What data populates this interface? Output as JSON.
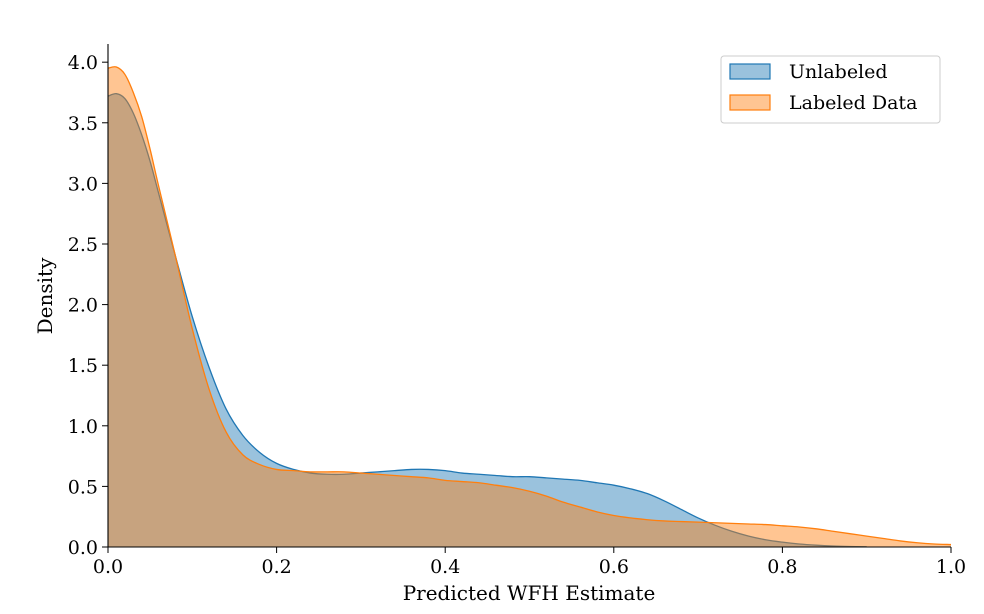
{
  "chart_data": {
    "type": "area",
    "xlabel": "Predicted WFH Estimate",
    "ylabel": "Density",
    "xlim": [
      0.0,
      1.0
    ],
    "ylim": [
      0.0,
      4.15
    ],
    "x_ticks": [
      "0.0",
      "0.2",
      "0.4",
      "0.6",
      "0.8",
      "1.0"
    ],
    "y_ticks": [
      "0.0",
      "0.5",
      "1.0",
      "1.5",
      "2.0",
      "2.5",
      "3.0",
      "3.5",
      "4.0"
    ],
    "legend_position": "top-right",
    "grid": false,
    "series": [
      {
        "name": "Unlabeled",
        "color": "#1f77b4",
        "x": [
          0.0,
          0.01,
          0.02,
          0.03,
          0.04,
          0.05,
          0.06,
          0.08,
          0.1,
          0.12,
          0.14,
          0.16,
          0.18,
          0.2,
          0.22,
          0.24,
          0.26,
          0.28,
          0.3,
          0.32,
          0.34,
          0.36,
          0.38,
          0.4,
          0.42,
          0.44,
          0.46,
          0.48,
          0.5,
          0.52,
          0.54,
          0.56,
          0.58,
          0.6,
          0.62,
          0.64,
          0.66,
          0.68,
          0.7,
          0.72,
          0.74,
          0.76,
          0.78,
          0.8,
          0.82,
          0.84,
          0.86,
          0.88,
          0.9
        ],
        "values": [
          3.72,
          3.74,
          3.7,
          3.58,
          3.4,
          3.18,
          2.92,
          2.4,
          1.9,
          1.48,
          1.14,
          0.92,
          0.78,
          0.69,
          0.64,
          0.61,
          0.6,
          0.6,
          0.61,
          0.62,
          0.63,
          0.64,
          0.64,
          0.63,
          0.61,
          0.6,
          0.59,
          0.58,
          0.58,
          0.57,
          0.56,
          0.55,
          0.53,
          0.51,
          0.48,
          0.44,
          0.38,
          0.31,
          0.24,
          0.18,
          0.13,
          0.09,
          0.06,
          0.04,
          0.025,
          0.015,
          0.008,
          0.004,
          0.002
        ]
      },
      {
        "name": "Labeled Data",
        "color": "#ff7f0e",
        "x": [
          0.0,
          0.01,
          0.02,
          0.03,
          0.04,
          0.05,
          0.06,
          0.08,
          0.1,
          0.12,
          0.14,
          0.16,
          0.18,
          0.2,
          0.22,
          0.24,
          0.26,
          0.28,
          0.3,
          0.32,
          0.34,
          0.36,
          0.38,
          0.4,
          0.42,
          0.44,
          0.46,
          0.48,
          0.5,
          0.52,
          0.54,
          0.56,
          0.58,
          0.6,
          0.62,
          0.64,
          0.66,
          0.68,
          0.7,
          0.72,
          0.74,
          0.76,
          0.78,
          0.8,
          0.82,
          0.84,
          0.86,
          0.88,
          0.9,
          0.92,
          0.94,
          0.96,
          0.98,
          1.0
        ],
        "values": [
          3.95,
          3.96,
          3.9,
          3.75,
          3.55,
          3.28,
          2.98,
          2.4,
          1.8,
          1.3,
          0.95,
          0.76,
          0.68,
          0.64,
          0.63,
          0.62,
          0.62,
          0.62,
          0.61,
          0.6,
          0.59,
          0.58,
          0.57,
          0.55,
          0.54,
          0.53,
          0.51,
          0.49,
          0.46,
          0.42,
          0.37,
          0.33,
          0.29,
          0.26,
          0.24,
          0.225,
          0.215,
          0.21,
          0.205,
          0.2,
          0.195,
          0.19,
          0.185,
          0.175,
          0.165,
          0.15,
          0.13,
          0.11,
          0.09,
          0.07,
          0.05,
          0.035,
          0.025,
          0.02
        ]
      }
    ]
  }
}
